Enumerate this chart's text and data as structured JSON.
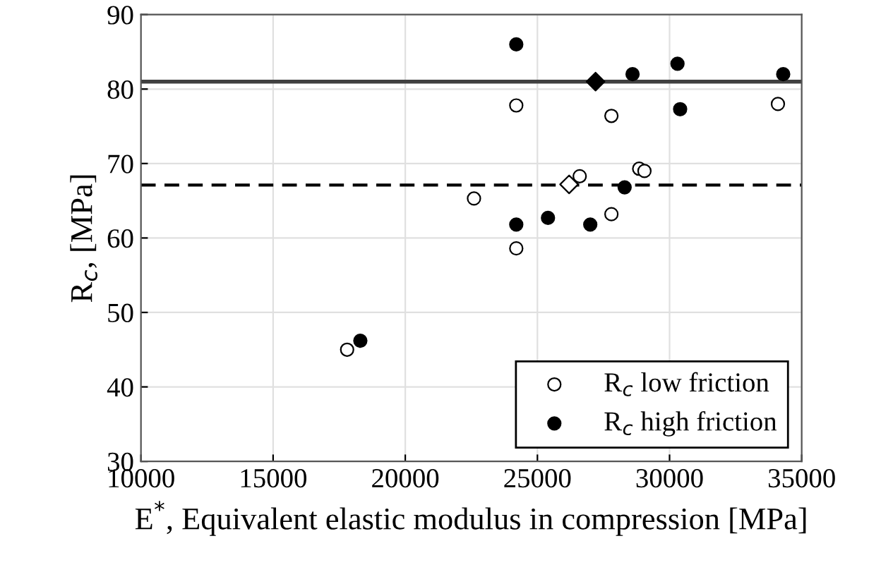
{
  "chart_data": {
    "type": "scatter",
    "xlabel": "E$^{*}$, Equivalent elastic modulus in compression [MPa]",
    "ylabel": "R$_{c}$, [MPa]",
    "xlim": [
      10000,
      35000
    ],
    "ylim": [
      30,
      90
    ],
    "xticks": [
      10000,
      15000,
      20000,
      25000,
      30000,
      35000
    ],
    "yticks": [
      30,
      40,
      50,
      60,
      70,
      80,
      90
    ],
    "grid": true,
    "legend": "bottom right",
    "series": [
      {
        "name": "R$_{c}$ low friction",
        "color": "#ffffff",
        "marker": "circle",
        "x": [
          17800,
          22600,
          24200,
          24200,
          26600,
          27800,
          27800,
          28850,
          29050,
          34100
        ],
        "values": [
          45,
          65.3,
          77.8,
          58.6,
          68.3,
          76.4,
          63.2,
          69.3,
          69,
          78
        ]
      },
      {
        "name": "R$_{c}$ high friction",
        "color": "#000000",
        "marker": "circle",
        "x": [
          18300,
          24200,
          24200,
          25400,
          27000,
          28300,
          28600,
          30300,
          30400,
          34300
        ],
        "values": [
          46.2,
          86,
          61.8,
          62.7,
          61.8,
          66.8,
          82,
          83.4,
          77.3,
          82
        ]
      },
      {
        "color": "#ffffff",
        "marker": "diamond",
        "x": [
          26200
        ],
        "values": [
          67.2
        ]
      },
      {
        "color": "#000000",
        "marker": "diamond",
        "x": [
          27200
        ],
        "values": [
          81
        ]
      }
    ],
    "ref_lines": [
      {
        "axis": "y",
        "value": 81,
        "color": "#404040",
        "line_style": "solid"
      },
      {
        "axis": "y",
        "value": 67.1,
        "color": "#000000",
        "line_style": "dashed"
      }
    ]
  }
}
